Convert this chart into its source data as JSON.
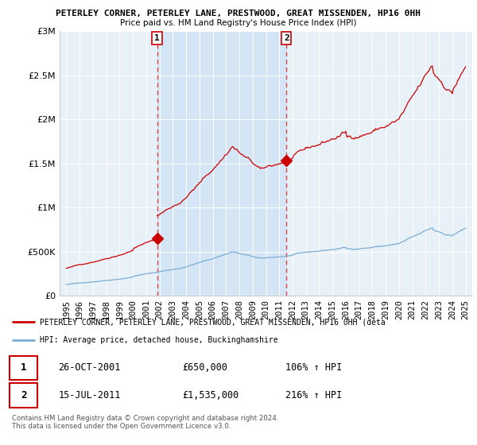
{
  "title1": "PETERLEY CORNER, PETERLEY LANE, PRESTWOOD, GREAT MISSENDEN, HP16 0HH",
  "title2": "Price paid vs. HM Land Registry's House Price Index (HPI)",
  "legend_label1": "PETERLEY CORNER, PETERLEY LANE, PRESTWOOD, GREAT MISSENDEN, HP16 0HH (deta",
  "legend_label2": "HPI: Average price, detached house, Buckinghamshire",
  "footnote": "Contains HM Land Registry data © Crown copyright and database right 2024.\nThis data is licensed under the Open Government Licence v3.0.",
  "sale1_label": "1",
  "sale1_date": "26-OCT-2001",
  "sale1_price": "£650,000",
  "sale1_hpi": "106% ↑ HPI",
  "sale2_label": "2",
  "sale2_date": "15-JUL-2011",
  "sale2_price": "£1,535,000",
  "sale2_hpi": "216% ↑ HPI",
  "sale1_x": 2001.82,
  "sale1_y": 650000,
  "sale2_x": 2011.54,
  "sale2_y": 1535000,
  "property_color": "#cc0000",
  "hpi_color": "#7aadd4",
  "vline_color": "#dd4444",
  "shade_color": "#ddeeff",
  "background_color": "#e8f0f8",
  "xlim": [
    1994.5,
    2025.5
  ],
  "ylim": [
    0,
    3000000
  ],
  "yticks": [
    0,
    500000,
    1000000,
    1500000,
    2000000,
    2500000,
    3000000
  ],
  "ytick_labels": [
    "£0",
    "£500K",
    "£1M",
    "£1.5M",
    "£2M",
    "£2.5M",
    "£3M"
  ]
}
